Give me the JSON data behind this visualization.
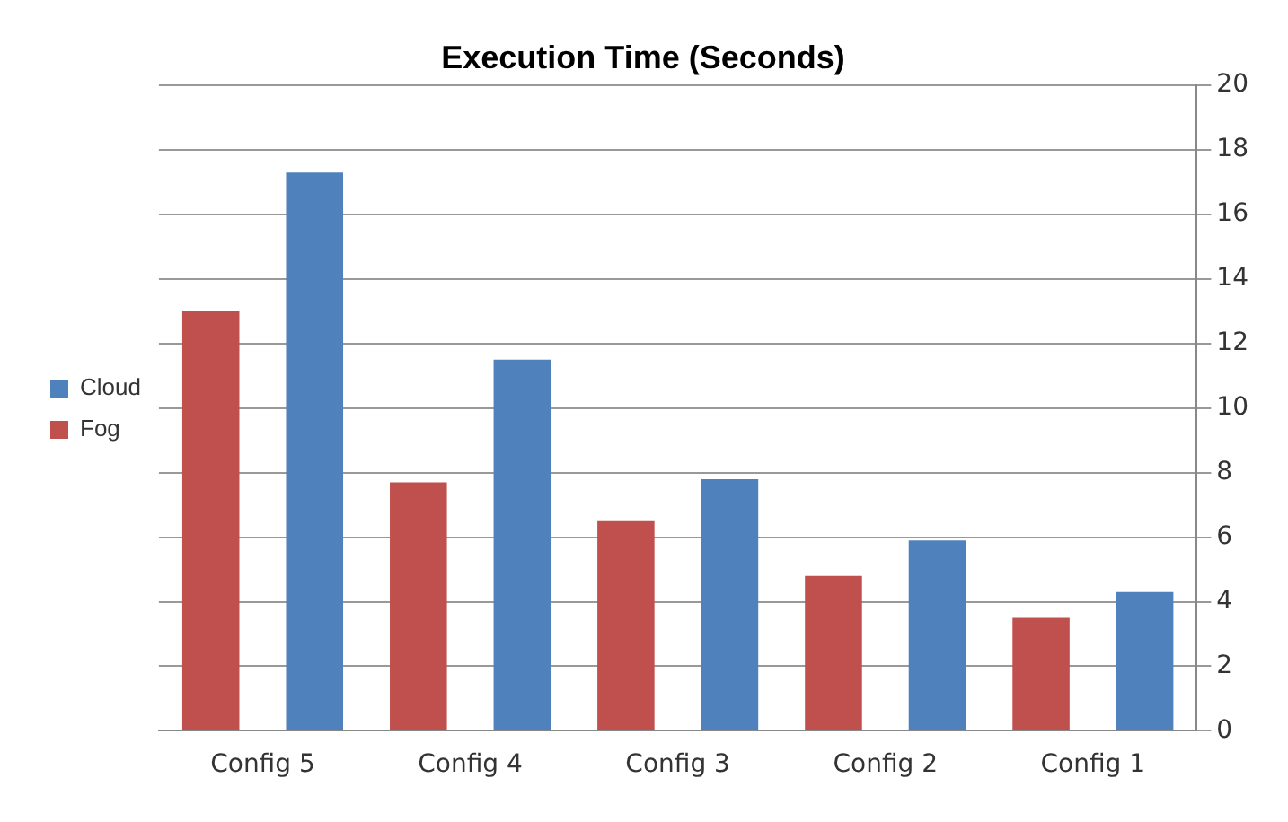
{
  "chart_data": {
    "type": "bar",
    "title": "Execution Time (Seconds)",
    "categories": [
      "Config 5",
      "Config 4",
      "Config 3",
      "Config 2",
      "Config 1"
    ],
    "series": [
      {
        "name": "Fog",
        "color": "#c0504d",
        "values": [
          13,
          7.7,
          6.5,
          4.8,
          3.5
        ]
      },
      {
        "name": "Cloud",
        "color": "#4f81bd",
        "values": [
          17.3,
          11.5,
          7.8,
          5.9,
          4.3
        ]
      }
    ],
    "ylim": [
      0,
      20
    ],
    "yticks": [
      0,
      2,
      4,
      6,
      8,
      10,
      12,
      14,
      16,
      18,
      20
    ],
    "grid": "y",
    "legend": "left"
  }
}
